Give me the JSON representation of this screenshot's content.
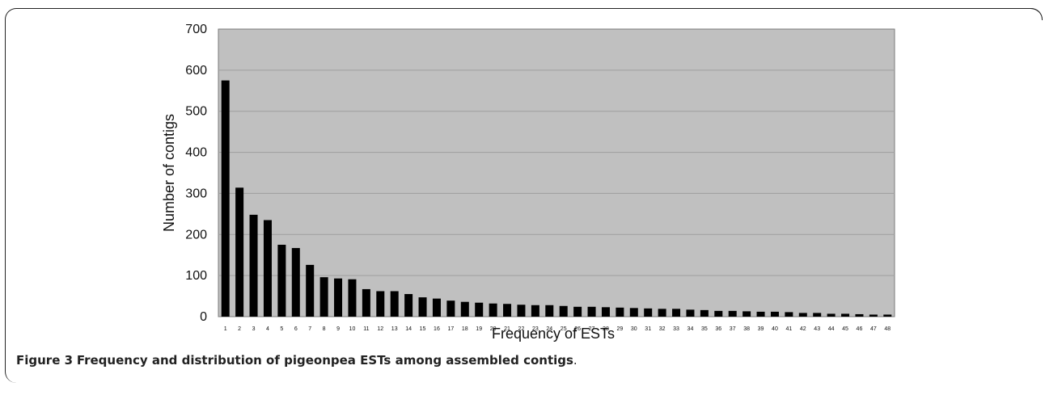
{
  "caption": {
    "label": "Figure 3",
    "text": "Frequency and distribution of pigeonpea ESTs among assembled contigs",
    "end": "."
  },
  "colors": {
    "plot_bg": "#c0c0c0",
    "bar": "#000000",
    "grid": "#9e9e9e"
  },
  "chart_data": {
    "type": "bar",
    "title": "",
    "xlabel": "Frequency of ESTs",
    "ylabel": "Number of contigs",
    "ylim": [
      0,
      700
    ],
    "yticks": [
      0,
      100,
      200,
      300,
      400,
      500,
      600,
      700
    ],
    "grid": true,
    "categories": [
      "1",
      "2",
      "3",
      "4",
      "5",
      "6",
      "7",
      "8",
      "9",
      "10",
      "11",
      "12",
      "13",
      "14",
      "15",
      "16",
      "17",
      "18",
      "19",
      "20",
      "21",
      "22",
      "23",
      "24",
      "25",
      "26",
      "27",
      "28",
      "29",
      "30",
      "31",
      "32",
      "33",
      "34",
      "35",
      "36",
      "37",
      "38",
      "39",
      "40",
      "41",
      "42",
      "43",
      "44",
      "45",
      "46",
      "47",
      "48"
    ],
    "values": [
      575,
      314,
      248,
      235,
      175,
      167,
      126,
      96,
      93,
      91,
      67,
      62,
      62,
      55,
      47,
      44,
      39,
      36,
      34,
      32,
      31,
      29,
      28,
      28,
      26,
      24,
      24,
      23,
      22,
      21,
      20,
      19,
      19,
      17,
      16,
      14,
      14,
      13,
      12,
      12,
      11,
      9,
      9,
      7,
      7,
      6,
      5,
      5
    ]
  }
}
